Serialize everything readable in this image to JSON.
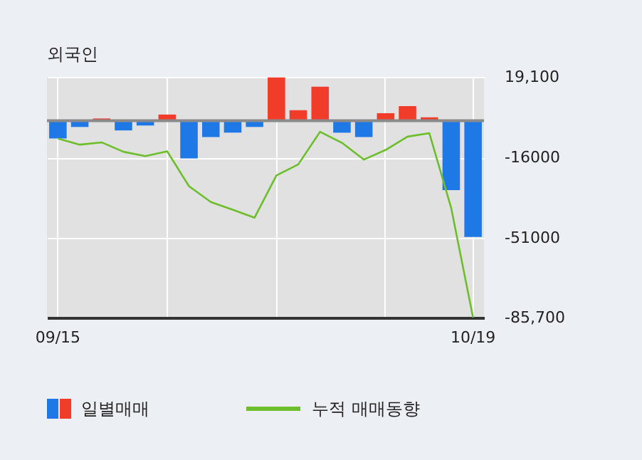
{
  "chart_data": {
    "type": "bar",
    "title": "외국인",
    "categories": [
      "09/15",
      null,
      null,
      null,
      null,
      null,
      null,
      null,
      null,
      null,
      null,
      null,
      null,
      null,
      null,
      null,
      null,
      null,
      null,
      "10/19"
    ],
    "series": [
      {
        "name": "일별매매",
        "colors": [
          "#1e78e6",
          "#1e78e6",
          "#f03c28",
          "#1e78e6",
          "#1e78e6",
          "#f03c28",
          "#1e78e6",
          "#1e78e6",
          "#1e78e6",
          "#1e78e6",
          "#f03c28",
          "#f03c28",
          "#f03c28",
          "#1e78e6",
          "#1e78e6",
          "#f03c28",
          "#f03c28",
          "#f03c28",
          "#1e78e6",
          "#1e78e6"
        ],
        "values": [
          -7700,
          -2700,
          1000,
          -4200,
          -2100,
          2700,
          -16400,
          -7100,
          -5200,
          -2700,
          18900,
          4600,
          14800,
          -5200,
          -7100,
          3300,
          6400,
          1500,
          -30200,
          -50600
        ]
      },
      {
        "name": "누적 매매동향",
        "type": "line",
        "color": "#6cbf2a",
        "values": [
          -7700,
          -10400,
          -9400,
          -13500,
          -15400,
          -13300,
          -28500,
          -35400,
          -38700,
          -42200,
          -23800,
          -19000,
          -4800,
          -9600,
          -16900,
          -12700,
          -6900,
          -5400,
          -38000,
          -85700
        ]
      }
    ],
    "ylim": [
      -85700,
      19100
    ],
    "yticks": [
      {
        "value": 19100,
        "label": "19,100"
      },
      {
        "value": -16000,
        "label": "-16000"
      },
      {
        "value": -51000,
        "label": "-51000"
      },
      {
        "value": -85700,
        "label": "-85,700"
      }
    ],
    "ref_lines": [
      {
        "axis": "y",
        "value": 0,
        "color": "#8a8a8a"
      }
    ],
    "grid": true,
    "legend": "bottom"
  }
}
